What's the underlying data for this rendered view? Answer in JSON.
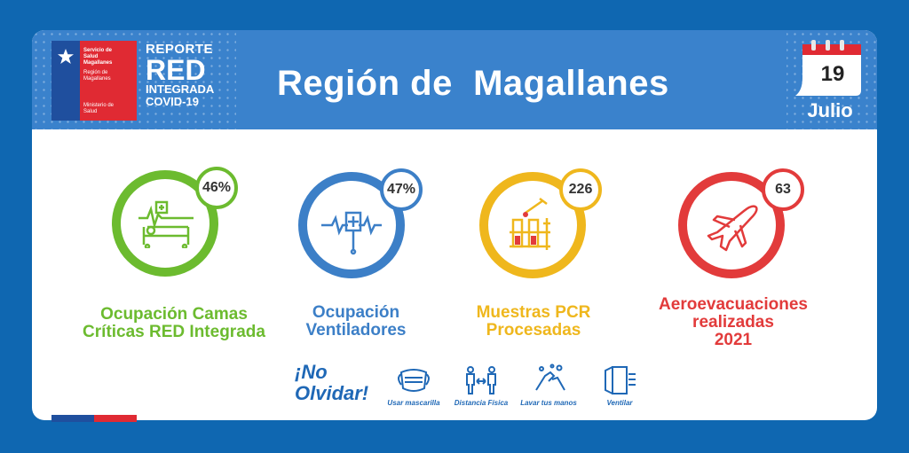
{
  "logo": {
    "line1": "Servicio de",
    "line2": "Salud",
    "line3": "Magallanes",
    "line4": "Región de",
    "line5": "Magallanes",
    "line6": "Ministerio de",
    "line7": "Salud"
  },
  "report": {
    "line1": "REPORTE",
    "line2": "RED",
    "line3": "INTEGRADA",
    "line4": "COVID-19"
  },
  "title": "Región de  Magallanes",
  "date": {
    "day": "19",
    "month": "Julio"
  },
  "metrics": [
    {
      "value": "46%",
      "label1": "Ocupación Camas",
      "label2": "Críticas RED Integrada",
      "label3": "",
      "color": "#6cbb2f",
      "icon": "hospital-bed-icon"
    },
    {
      "value": "47%",
      "label1": "Ocupación",
      "label2": "Ventiladores",
      "label3": "",
      "color": "#3c7fc7",
      "icon": "ventilator-icon"
    },
    {
      "value": "226",
      "label1": "Muestras PCR",
      "label2": "Procesadas",
      "label3": "",
      "color": "#efb71d",
      "icon": "test-tubes-icon"
    },
    {
      "value": "63",
      "label1": "Aeroevacuaciones",
      "label2": "realizadas",
      "label3": "2021",
      "color": "#e23b3b",
      "icon": "airplane-icon"
    }
  ],
  "reminder": {
    "title1": "¡No",
    "title2": "Olvidar!",
    "items": [
      {
        "label": "Usar mascarilla",
        "icon": "mask-icon"
      },
      {
        "label": "Distancia Física",
        "icon": "distance-icon"
      },
      {
        "label": "Lavar tus manos",
        "icon": "wash-hands-icon"
      },
      {
        "label": "Ventilar",
        "icon": "window-icon"
      }
    ]
  },
  "colors": {
    "background": "#0f67b1",
    "header": "#3a82cc",
    "flag_blue": "#1f4f9e",
    "flag_red": "#e02a33"
  }
}
